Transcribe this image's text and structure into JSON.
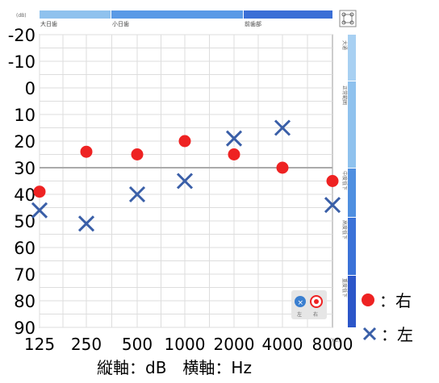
{
  "chart_data": {
    "type": "scatter",
    "title": "",
    "y_unit_label": "(dB)",
    "x_unit_label": "(Hz)",
    "caption": "縦軸：dB　横軸：Hz",
    "x_categories": [
      "125",
      "250",
      "500",
      "1000",
      "2000",
      "4000",
      "8000"
    ],
    "y_ticks": [
      "-20",
      "-10",
      "0",
      "10",
      "20",
      "30",
      "40",
      "50",
      "60",
      "70",
      "80",
      "90"
    ],
    "ylim": [
      -20,
      90
    ],
    "y_inverted": true,
    "grid": true,
    "reference_line": 30,
    "top_bands": [
      "大日歯",
      "小日歯",
      "前歯部"
    ],
    "side_bands": [
      "大通",
      "正常範囲",
      "中度低下",
      "高度低下",
      "重度低下"
    ],
    "series": [
      {
        "name": "右",
        "marker": "circle",
        "color": "#ee2222",
        "values": [
          39,
          24,
          25,
          20,
          25,
          30,
          35
        ]
      },
      {
        "name": "左",
        "marker": "cross",
        "color": "#3a5fa8",
        "values": [
          46,
          51,
          40,
          35,
          19,
          15,
          44
        ]
      }
    ],
    "inset_legend": {
      "left_label": "左",
      "right_label": "右"
    },
    "legend": {
      "placement": "right",
      "right_text": "：右",
      "left_text": "：左"
    },
    "colors": {
      "band_light": "#8fc2ee",
      "band_mid": "#4f8fe0",
      "band_dark": "#2c56c9"
    }
  }
}
